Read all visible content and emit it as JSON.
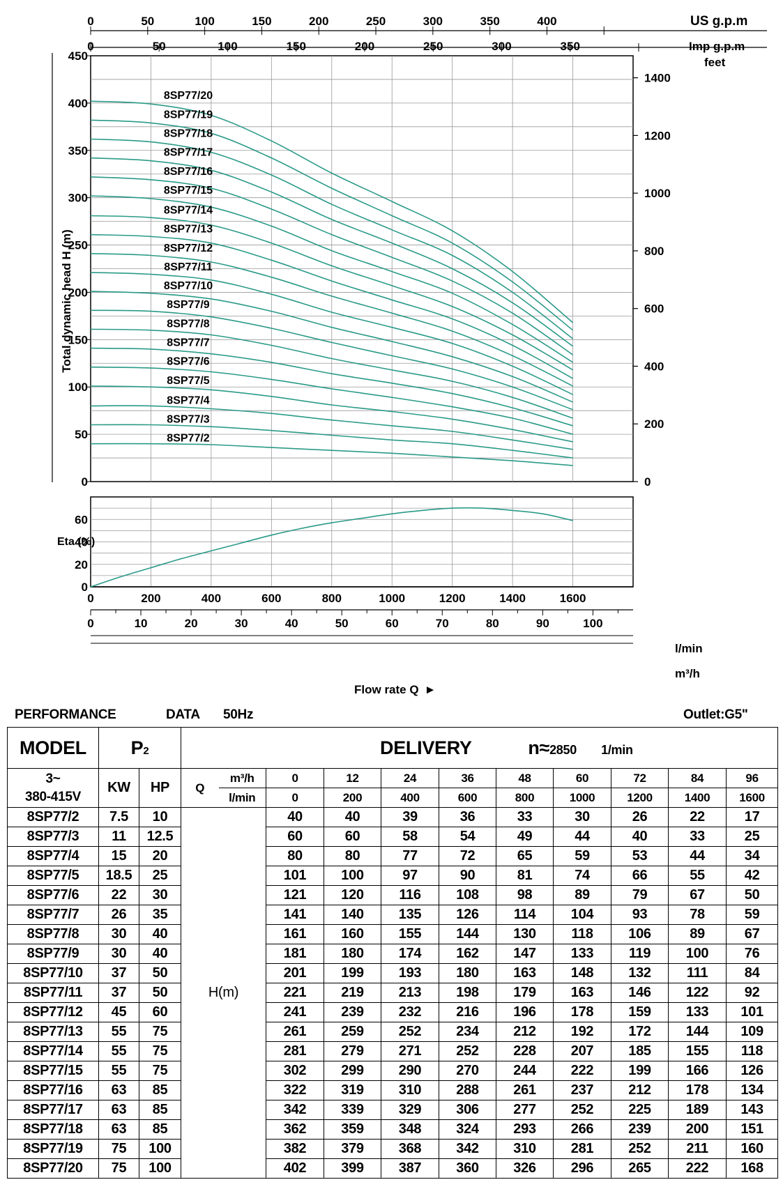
{
  "chart_data": [
    {
      "type": "line",
      "title": "",
      "ylabel": "Total dynamic head H (m)",
      "ylim": [
        0,
        450
      ],
      "xlim": [
        0,
        1800
      ],
      "x_unit": "l/min",
      "y_ticks": [
        0,
        50,
        100,
        150,
        200,
        250,
        300,
        350,
        400,
        450
      ],
      "right_axis": {
        "label": "feet",
        "ticks": [
          "0",
          "200",
          "400",
          "600",
          "800",
          "1000",
          "1200",
          "1400"
        ]
      },
      "top_axis_us": {
        "label": "US g.p.m",
        "ticks": [
          "0",
          "50",
          "100",
          "150",
          "200",
          "250",
          "300",
          "350",
          "400"
        ]
      },
      "top_axis_imp": {
        "label": "Imp g.p.m",
        "ticks": [
          "0",
          "50",
          "100",
          "150",
          "200",
          "250",
          "300",
          "350"
        ]
      },
      "x": [
        0,
        200,
        400,
        600,
        800,
        1000,
        1200,
        1400,
        1600
      ],
      "series": [
        {
          "name": "8SP77/2",
          "values": [
            40,
            40,
            39,
            36,
            33,
            30,
            26,
            22,
            17
          ]
        },
        {
          "name": "8SP77/3",
          "values": [
            60,
            60,
            58,
            54,
            49,
            44,
            40,
            33,
            25
          ]
        },
        {
          "name": "8SP77/4",
          "values": [
            80,
            80,
            77,
            72,
            65,
            59,
            53,
            44,
            34
          ]
        },
        {
          "name": "8SP77/5",
          "values": [
            101,
            100,
            97,
            90,
            81,
            74,
            66,
            55,
            42
          ]
        },
        {
          "name": "8SP77/6",
          "values": [
            121,
            120,
            116,
            108,
            98,
            89,
            79,
            67,
            50
          ]
        },
        {
          "name": "8SP77/7",
          "values": [
            141,
            140,
            135,
            126,
            114,
            104,
            93,
            78,
            59
          ]
        },
        {
          "name": "8SP77/8",
          "values": [
            161,
            160,
            155,
            144,
            130,
            118,
            106,
            89,
            67
          ]
        },
        {
          "name": "8SP77/9",
          "values": [
            181,
            180,
            174,
            162,
            147,
            133,
            119,
            100,
            76
          ]
        },
        {
          "name": "8SP77/10",
          "values": [
            201,
            199,
            193,
            180,
            163,
            148,
            132,
            111,
            84
          ]
        },
        {
          "name": "8SP77/11",
          "values": [
            221,
            219,
            213,
            198,
            179,
            163,
            146,
            122,
            92
          ]
        },
        {
          "name": "8SP77/12",
          "values": [
            241,
            239,
            232,
            216,
            196,
            178,
            159,
            133,
            101
          ]
        },
        {
          "name": "8SP77/13",
          "values": [
            261,
            259,
            252,
            234,
            212,
            192,
            172,
            144,
            109
          ]
        },
        {
          "name": "8SP77/14",
          "values": [
            281,
            279,
            271,
            252,
            228,
            207,
            185,
            155,
            118
          ]
        },
        {
          "name": "8SP77/15",
          "values": [
            302,
            299,
            290,
            270,
            244,
            222,
            199,
            166,
            126
          ]
        },
        {
          "name": "8SP77/16",
          "values": [
            322,
            319,
            310,
            288,
            261,
            237,
            212,
            178,
            134
          ]
        },
        {
          "name": "8SP77/17",
          "values": [
            342,
            339,
            329,
            306,
            277,
            252,
            225,
            189,
            143
          ]
        },
        {
          "name": "8SP77/18",
          "values": [
            362,
            359,
            348,
            324,
            293,
            266,
            239,
            200,
            151
          ]
        },
        {
          "name": "8SP77/19",
          "values": [
            382,
            379,
            368,
            342,
            310,
            281,
            252,
            211,
            160
          ]
        },
        {
          "name": "8SP77/20",
          "values": [
            402,
            399,
            387,
            360,
            326,
            296,
            265,
            222,
            168
          ]
        }
      ],
      "line_color": "#2a9a88",
      "grid": true
    },
    {
      "type": "line",
      "title": "",
      "ylabel": "Eta (%)",
      "ylim": [
        0,
        80
      ],
      "y_ticks": [
        0,
        20,
        40,
        60
      ],
      "x_ticks": [
        "0",
        "200",
        "400",
        "600",
        "800",
        "1000",
        "1200",
        "1400",
        "1600"
      ],
      "x_unit": "l/min",
      "x2_ticks": [
        "0",
        "10",
        "20",
        "30",
        "40",
        "50",
        "60",
        "70",
        "80",
        "90",
        "100"
      ],
      "x2_unit": "m³/h",
      "xlabel": "Flow rate Q",
      "x": [
        0,
        100,
        200,
        300,
        400,
        500,
        600,
        700,
        800,
        900,
        1000,
        1100,
        1200,
        1300,
        1400,
        1500,
        1600
      ],
      "series": [
        {
          "values": [
            0,
            9,
            17,
            25,
            32,
            39,
            46,
            52,
            57,
            61,
            65,
            68,
            70,
            70,
            68,
            65,
            59
          ]
        }
      ],
      "line_color": "#2a9a88",
      "grid": true
    }
  ],
  "header": {
    "performance": "PERFORMANCE",
    "data": "DATA",
    "freq": "50Hz",
    "outlet": "Outlet:G5\""
  },
  "table": {
    "model": "MODEL",
    "p2_main": "P",
    "p2_sub": "2",
    "delivery": "DELIVERY",
    "n_label": "n≈",
    "n_value": "2850",
    "rpm_unit": "1/min",
    "voltage_1": "3~",
    "voltage_2": "380-415V",
    "kw": "KW",
    "hp": "HP",
    "q": "Q",
    "unit_m3h": "m³/h",
    "unit_lmin": "l/min",
    "flows_m3h": [
      "0",
      "12",
      "24",
      "36",
      "48",
      "60",
      "72",
      "84",
      "96"
    ],
    "flows_lmin": [
      "0",
      "200",
      "400",
      "600",
      "800",
      "1000",
      "1200",
      "1400",
      "1600"
    ],
    "head_label": "H(m)",
    "rows": [
      {
        "model": "8SP77/2",
        "kw": "7.5",
        "hp": "10",
        "h": [
          "40",
          "40",
          "39",
          "36",
          "33",
          "30",
          "26",
          "22",
          "17"
        ]
      },
      {
        "model": "8SP77/3",
        "kw": "11",
        "hp": "12.5",
        "h": [
          "60",
          "60",
          "58",
          "54",
          "49",
          "44",
          "40",
          "33",
          "25"
        ]
      },
      {
        "model": "8SP77/4",
        "kw": "15",
        "hp": "20",
        "h": [
          "80",
          "80",
          "77",
          "72",
          "65",
          "59",
          "53",
          "44",
          "34"
        ]
      },
      {
        "model": "8SP77/5",
        "kw": "18.5",
        "hp": "25",
        "h": [
          "101",
          "100",
          "97",
          "90",
          "81",
          "74",
          "66",
          "55",
          "42"
        ]
      },
      {
        "model": "8SP77/6",
        "kw": "22",
        "hp": "30",
        "h": [
          "121",
          "120",
          "116",
          "108",
          "98",
          "89",
          "79",
          "67",
          "50"
        ]
      },
      {
        "model": "8SP77/7",
        "kw": "26",
        "hp": "35",
        "h": [
          "141",
          "140",
          "135",
          "126",
          "114",
          "104",
          "93",
          "78",
          "59"
        ]
      },
      {
        "model": "8SP77/8",
        "kw": "30",
        "hp": "40",
        "h": [
          "161",
          "160",
          "155",
          "144",
          "130",
          "118",
          "106",
          "89",
          "67"
        ]
      },
      {
        "model": "8SP77/9",
        "kw": "30",
        "hp": "40",
        "h": [
          "181",
          "180",
          "174",
          "162",
          "147",
          "133",
          "119",
          "100",
          "76"
        ]
      },
      {
        "model": "8SP77/10",
        "kw": "37",
        "hp": "50",
        "h": [
          "201",
          "199",
          "193",
          "180",
          "163",
          "148",
          "132",
          "111",
          "84"
        ]
      },
      {
        "model": "8SP77/11",
        "kw": "37",
        "hp": "50",
        "h": [
          "221",
          "219",
          "213",
          "198",
          "179",
          "163",
          "146",
          "122",
          "92"
        ]
      },
      {
        "model": "8SP77/12",
        "kw": "45",
        "hp": "60",
        "h": [
          "241",
          "239",
          "232",
          "216",
          "196",
          "178",
          "159",
          "133",
          "101"
        ]
      },
      {
        "model": "8SP77/13",
        "kw": "55",
        "hp": "75",
        "h": [
          "261",
          "259",
          "252",
          "234",
          "212",
          "192",
          "172",
          "144",
          "109"
        ]
      },
      {
        "model": "8SP77/14",
        "kw": "55",
        "hp": "75",
        "h": [
          "281",
          "279",
          "271",
          "252",
          "228",
          "207",
          "185",
          "155",
          "118"
        ]
      },
      {
        "model": "8SP77/15",
        "kw": "55",
        "hp": "75",
        "h": [
          "302",
          "299",
          "290",
          "270",
          "244",
          "222",
          "199",
          "166",
          "126"
        ]
      },
      {
        "model": "8SP77/16",
        "kw": "63",
        "hp": "85",
        "h": [
          "322",
          "319",
          "310",
          "288",
          "261",
          "237",
          "212",
          "178",
          "134"
        ]
      },
      {
        "model": "8SP77/17",
        "kw": "63",
        "hp": "85",
        "h": [
          "342",
          "339",
          "329",
          "306",
          "277",
          "252",
          "225",
          "189",
          "143"
        ]
      },
      {
        "model": "8SP77/18",
        "kw": "63",
        "hp": "85",
        "h": [
          "362",
          "359",
          "348",
          "324",
          "293",
          "266",
          "239",
          "200",
          "151"
        ]
      },
      {
        "model": "8SP77/19",
        "kw": "75",
        "hp": "100",
        "h": [
          "382",
          "379",
          "368",
          "342",
          "310",
          "281",
          "252",
          "211",
          "160"
        ]
      },
      {
        "model": "8SP77/20",
        "kw": "75",
        "hp": "100",
        "h": [
          "402",
          "399",
          "387",
          "360",
          "326",
          "296",
          "265",
          "222",
          "168"
        ]
      }
    ]
  }
}
